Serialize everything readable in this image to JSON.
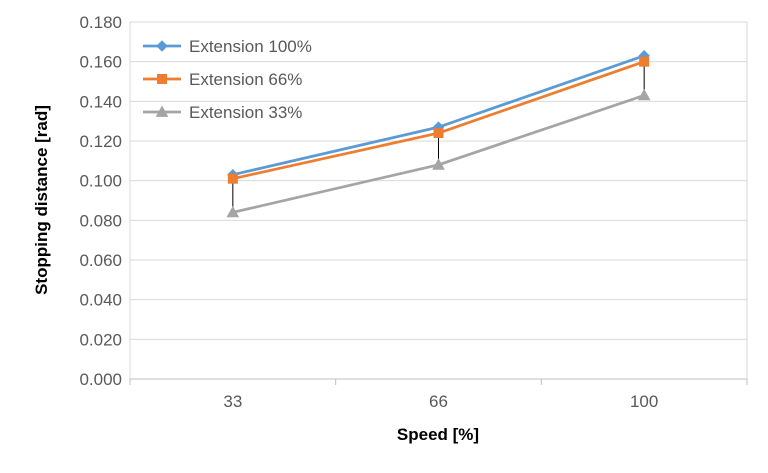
{
  "chart_data": {
    "type": "line",
    "title": "",
    "xlabel": "Speed [%]",
    "ylabel": "Stopping distance [rad]",
    "categories": [
      "33",
      "66",
      "100"
    ],
    "ylim": [
      0,
      0.18
    ],
    "ytick_step": 0.02,
    "ytick_labels": [
      "0.000",
      "0.020",
      "0.040",
      "0.060",
      "0.080",
      "0.100",
      "0.120",
      "0.140",
      "0.160",
      "0.180"
    ],
    "grid": true,
    "legend_position": "top-left",
    "drop_lines": true,
    "series": [
      {
        "name": "Extension 100%",
        "values": [
          0.103,
          0.127,
          0.163
        ],
        "color": "#5B9BD5",
        "marker": "diamond"
      },
      {
        "name": "Extension 66%",
        "values": [
          0.101,
          0.124,
          0.16
        ],
        "color": "#ED7D31",
        "marker": "square"
      },
      {
        "name": "Extension 33%",
        "values": [
          0.084,
          0.108,
          0.143
        ],
        "color": "#A5A5A5",
        "marker": "triangle"
      }
    ]
  }
}
